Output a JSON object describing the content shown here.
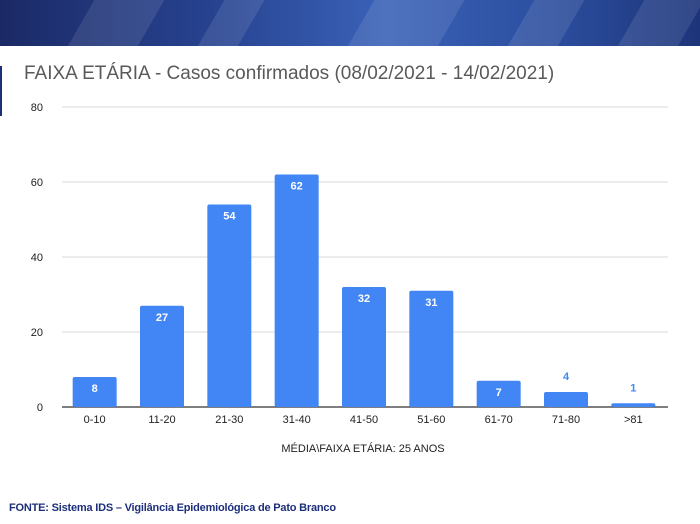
{
  "chart_data": {
    "type": "bar",
    "title": "FAIXA ETÁRIA - Casos confirmados (08/02/2021 - 14/02/2021)",
    "categories": [
      "0-10",
      "11-20",
      "21-30",
      "31-40",
      "41-50",
      "51-60",
      "61-70",
      "71-80",
      ">81"
    ],
    "values": [
      8,
      27,
      54,
      62,
      32,
      31,
      7,
      4,
      1
    ],
    "xlabel": "MÉDIA\\FAIXA ETÁRIA: 25 ANOS",
    "ylabel": "",
    "ylim": [
      0,
      80
    ],
    "yticks": [
      0,
      20,
      40,
      60,
      80
    ],
    "grid": true,
    "legend": "none",
    "bar_color": "#4285f4",
    "label_color_inside": "#ffffff",
    "label_color_outside": "#4285f4"
  },
  "footer": {
    "source": "FONTE: Sistema IDS – Vigilância Epidemiológica de Pato Branco"
  },
  "colors": {
    "banner": "#27428f",
    "title_text": "#595959",
    "axis_text": "#222222",
    "grid": "#d9d9d9",
    "footer_text": "#1d2f7a"
  }
}
